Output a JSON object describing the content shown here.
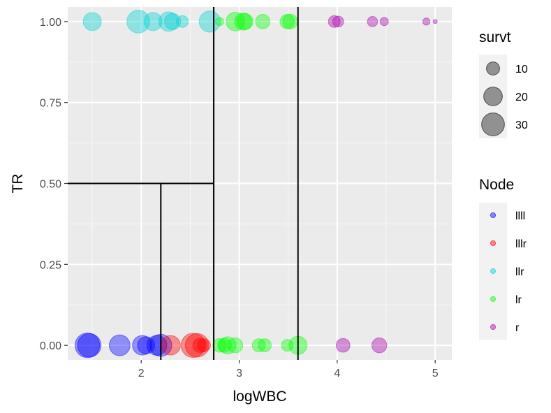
{
  "chart_data": {
    "type": "scatter",
    "xlabel": "logWBC",
    "ylabel": "TR",
    "xlim": [
      1.25,
      5.17
    ],
    "ylim": [
      -0.045,
      1.045
    ],
    "x_ticks": [
      2,
      3,
      4,
      5
    ],
    "y_ticks": [
      0.0,
      0.25,
      0.5,
      0.75,
      1.0
    ],
    "y_tick_labels": [
      "0.00",
      "0.25",
      "0.50",
      "0.75",
      "1.00"
    ],
    "grid": true,
    "legend_position": "right",
    "size_legend": {
      "title": "survt",
      "values": [
        10,
        20,
        30
      ]
    },
    "color_legend": {
      "title": "Node",
      "entries": [
        {
          "label": "llll",
          "color": "#0000ff"
        },
        {
          "label": "lllr",
          "color": "#ff0000"
        },
        {
          "label": "llr",
          "color": "#00d2d2"
        },
        {
          "label": "lr",
          "color": "#00ff00"
        },
        {
          "label": "r",
          "color": "#aa00aa"
        }
      ]
    },
    "split_lines": [
      {
        "orientation": "vertical",
        "x": 2.2,
        "y_from": -0.045,
        "y_to": 0.5
      },
      {
        "orientation": "horizontal",
        "y": 0.5,
        "x_from": 1.25,
        "x_to": 2.74
      },
      {
        "orientation": "vertical",
        "x": 2.74,
        "y_from": -0.045,
        "y_to": 1.045
      },
      {
        "orientation": "vertical",
        "x": 3.6,
        "y_from": -0.045,
        "y_to": 1.045
      }
    ],
    "series": [
      {
        "node": "llll",
        "points": [
          {
            "x": 1.45,
            "y": 0,
            "survt": 35
          },
          {
            "x": 1.47,
            "y": 0,
            "survt": 32
          },
          {
            "x": 1.78,
            "y": 0,
            "survt": 25
          },
          {
            "x": 2.01,
            "y": 0,
            "survt": 22
          },
          {
            "x": 2.05,
            "y": 0,
            "survt": 17
          },
          {
            "x": 2.16,
            "y": 0,
            "survt": 23
          },
          {
            "x": 2.2,
            "y": 0,
            "survt": 28
          }
        ]
      },
      {
        "node": "lllr",
        "points": [
          {
            "x": 2.3,
            "y": 0,
            "survt": 22
          },
          {
            "x": 2.53,
            "y": 0,
            "survt": 34
          },
          {
            "x": 2.57,
            "y": 0,
            "survt": 32
          },
          {
            "x": 2.6,
            "y": 0,
            "survt": 12
          },
          {
            "x": 2.64,
            "y": 0,
            "survt": 10
          }
        ]
      },
      {
        "node": "llr",
        "points": [
          {
            "x": 1.5,
            "y": 1,
            "survt": 19
          },
          {
            "x": 1.97,
            "y": 1,
            "survt": 30
          },
          {
            "x": 2.12,
            "y": 1,
            "survt": 19
          },
          {
            "x": 2.28,
            "y": 1,
            "survt": 22
          },
          {
            "x": 2.32,
            "y": 1,
            "survt": 15
          },
          {
            "x": 2.42,
            "y": 1,
            "survt": 8
          },
          {
            "x": 2.7,
            "y": 1,
            "survt": 26
          }
        ]
      },
      {
        "node": "lr",
        "points": [
          {
            "x": 2.8,
            "y": 0,
            "survt": 11
          },
          {
            "x": 2.85,
            "y": 0,
            "survt": 11
          },
          {
            "x": 2.88,
            "y": 0,
            "survt": 17
          },
          {
            "x": 2.96,
            "y": 0,
            "survt": 13
          },
          {
            "x": 3.2,
            "y": 0,
            "survt": 10
          },
          {
            "x": 3.26,
            "y": 0,
            "survt": 10
          },
          {
            "x": 3.49,
            "y": 0,
            "survt": 8
          },
          {
            "x": 3.6,
            "y": 0,
            "survt": 19
          },
          {
            "x": 2.8,
            "y": 1,
            "survt": 4
          },
          {
            "x": 2.96,
            "y": 1,
            "survt": 20
          },
          {
            "x": 3.04,
            "y": 1,
            "survt": 17
          },
          {
            "x": 3.06,
            "y": 1,
            "survt": 15
          },
          {
            "x": 3.24,
            "y": 1,
            "survt": 12
          },
          {
            "x": 3.49,
            "y": 1,
            "survt": 12
          },
          {
            "x": 3.52,
            "y": 1,
            "survt": 13
          }
        ]
      },
      {
        "node": "r",
        "points": [
          {
            "x": 4.06,
            "y": 0,
            "survt": 11
          },
          {
            "x": 4.43,
            "y": 0,
            "survt": 13
          },
          {
            "x": 3.97,
            "y": 1,
            "survt": 8
          },
          {
            "x": 4.01,
            "y": 1,
            "survt": 7
          },
          {
            "x": 4.36,
            "y": 1,
            "survt": 6
          },
          {
            "x": 4.48,
            "y": 1,
            "survt": 4
          },
          {
            "x": 4.91,
            "y": 1,
            "survt": 3
          },
          {
            "x": 5.0,
            "y": 1,
            "survt": 1
          }
        ]
      }
    ]
  }
}
